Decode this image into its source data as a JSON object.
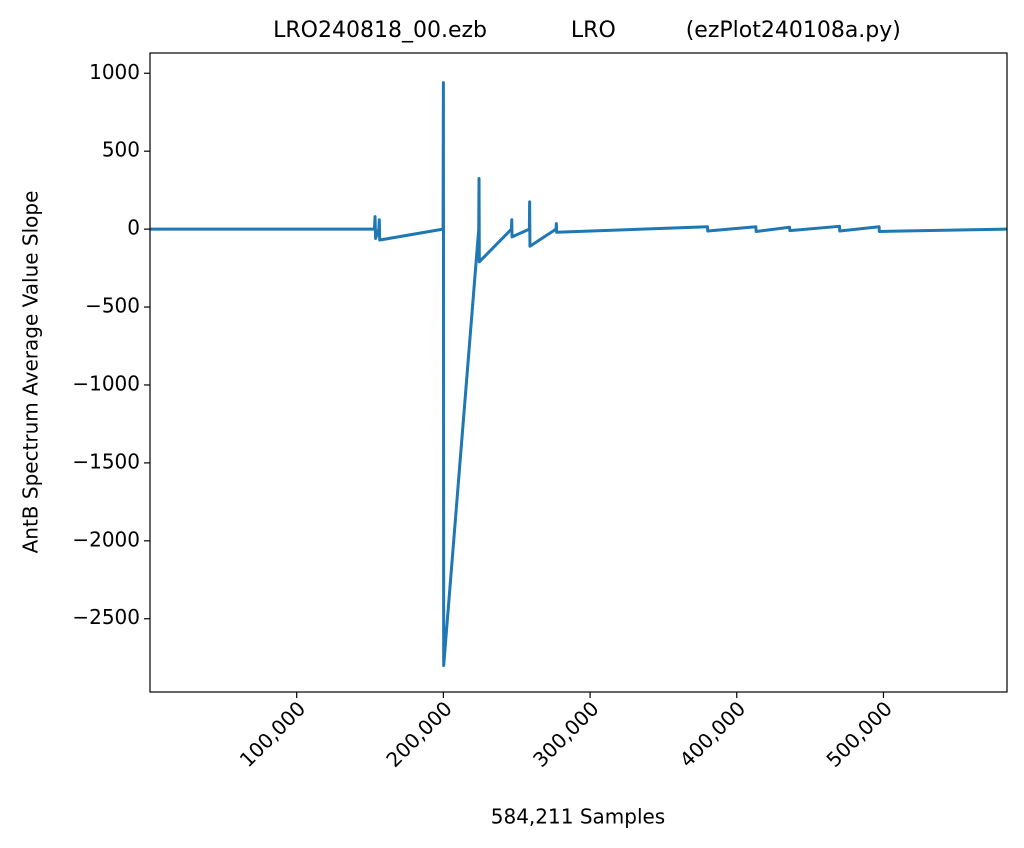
{
  "chart_data": {
    "type": "line",
    "title": "LRO240818_00.ezb            LRO          (ezPlot240108a.py)",
    "x_label": "584,211 Samples",
    "y_label": "AntB Spectrum Average Value Slope",
    "x": [
      0,
      153000,
      153400,
      153800,
      156000,
      156300,
      156600,
      199800,
      200000,
      200200,
      224100,
      224300,
      224500,
      246400,
      246600,
      246800,
      258600,
      258800,
      259000,
      276800,
      277000,
      277200,
      380000,
      380200,
      413000,
      413200,
      436000,
      436200,
      470000,
      470200,
      497000,
      497200,
      584211
    ],
    "series": [
      {
        "color": "#1f77b4",
        "values": [
          0,
          0,
          80,
          -60,
          0,
          60,
          -70,
          0,
          940,
          -2800,
          0,
          325,
          -210,
          0,
          60,
          -50,
          0,
          175,
          -110,
          0,
          35,
          -20,
          15,
          -12,
          15,
          -15,
          12,
          -10,
          18,
          -12,
          15,
          -15,
          0
        ]
      }
    ],
    "xlim": [
      0,
      584211
    ],
    "ylim": [
      -2970,
      1130
    ],
    "xticks": [
      {
        "value": 100000,
        "label": "100,000"
      },
      {
        "value": 200000,
        "label": "200,000"
      },
      {
        "value": 300000,
        "label": "300,000"
      },
      {
        "value": 400000,
        "label": "400,000"
      },
      {
        "value": 500000,
        "label": "500,000"
      }
    ],
    "yticks": [
      {
        "value": -2500,
        "label": "−2500"
      },
      {
        "value": -2000,
        "label": "−2000"
      },
      {
        "value": -1500,
        "label": "−1500"
      },
      {
        "value": -1000,
        "label": "−1000"
      },
      {
        "value": -500,
        "label": "−500"
      },
      0,
      500,
      1000
    ],
    "grid": false
  }
}
